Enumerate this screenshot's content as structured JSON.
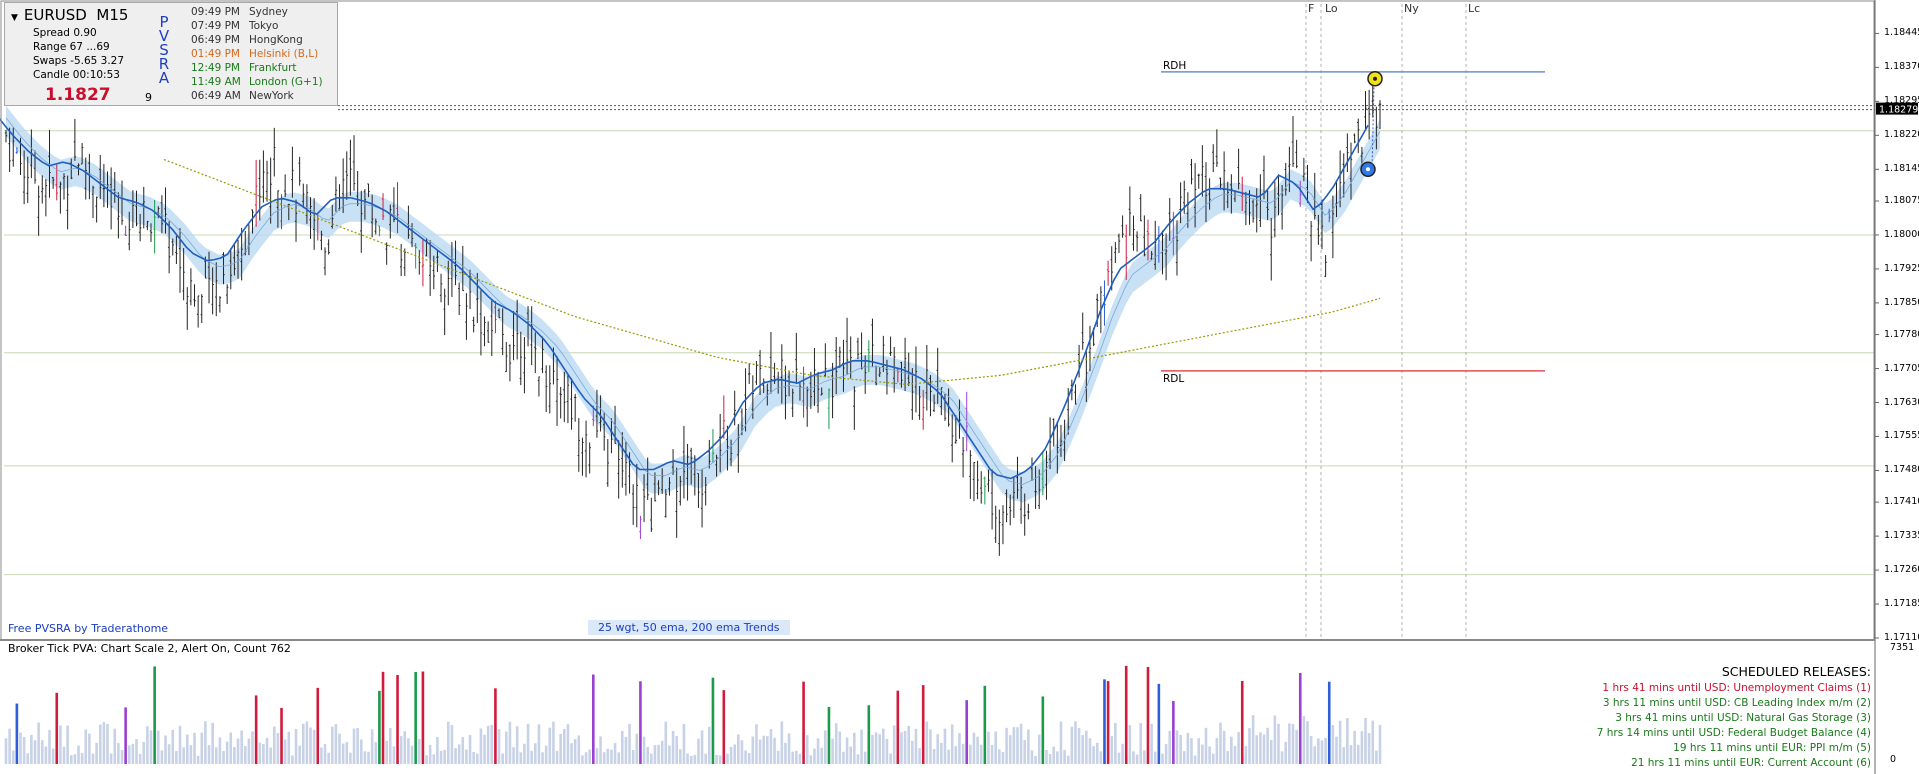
{
  "chart_data": {
    "type": "candlestick",
    "symbol": "EURUSD",
    "timeframe": "M15",
    "ylim": [
      1.1711,
      1.1851
    ],
    "y_ticks": [
      "1.18445",
      "1.18370",
      "1.18295",
      "1.18220",
      "1.18145",
      "1.18075",
      "1.18000",
      "1.17925",
      "1.17850",
      "1.17780",
      "1.17705",
      "1.17630",
      "1.17555",
      "1.17480",
      "1.17410",
      "1.17335",
      "1.17260",
      "1.17185",
      "1.17110"
    ],
    "current_price": "1.18279",
    "bar_count": 762,
    "price_path": [
      1.1822,
      1.1815,
      1.1812,
      1.181,
      1.1818,
      1.1812,
      1.1805,
      1.1802,
      1.1806,
      1.18,
      1.1792,
      1.1785,
      1.179,
      1.1795,
      1.1808,
      1.1815,
      1.181,
      1.1804,
      1.1799,
      1.1812,
      1.1808,
      1.1803,
      1.18,
      1.1795,
      1.1793,
      1.179,
      1.1786,
      1.178,
      1.1776,
      1.1778,
      1.1772,
      1.1768,
      1.176,
      1.1755,
      1.1752,
      1.1745,
      1.1738,
      1.1744,
      1.175,
      1.1745,
      1.1753,
      1.1758,
      1.1768,
      1.177,
      1.1767,
      1.1764,
      1.1768,
      1.177,
      1.1771,
      1.1772,
      1.1769,
      1.1767,
      1.1765,
      1.176,
      1.1752,
      1.1744,
      1.1738,
      1.1742,
      1.1748,
      1.1756,
      1.1768,
      1.178,
      1.1792,
      1.1802,
      1.1797,
      1.18,
      1.1806,
      1.181,
      1.1812,
      1.1808,
      1.1806,
      1.1804,
      1.1818,
      1.1808,
      1.1797,
      1.1816,
      1.1823,
      1.1828
    ],
    "ema_25": [
      1.1825,
      1.182,
      1.1816,
      1.1813,
      1.1814,
      1.1812,
      1.1809,
      1.1806,
      1.1805,
      1.1803,
      1.1799,
      1.1794,
      1.1792,
      1.1793,
      1.1799,
      1.1804,
      1.1806,
      1.1805,
      1.1802,
      1.1806,
      1.1806,
      1.1805,
      1.1803,
      1.18,
      1.1797,
      1.1794,
      1.1791,
      1.1787,
      1.1783,
      1.1781,
      1.1778,
      1.1774,
      1.1768,
      1.1762,
      1.1758,
      1.1752,
      1.1746,
      1.1746,
      1.1748,
      1.1747,
      1.175,
      1.1754,
      1.1761,
      1.1765,
      1.1766,
      1.1765,
      1.1767,
      1.1768,
      1.177,
      1.177,
      1.1769,
      1.1768,
      1.1766,
      1.1763,
      1.1757,
      1.1751,
      1.1745,
      1.1744,
      1.1746,
      1.1751,
      1.176,
      1.177,
      1.1781,
      1.179,
      1.1793,
      1.1796,
      1.1801,
      1.1805,
      1.1808,
      1.1808,
      1.1807,
      1.1806,
      1.1811,
      1.1809,
      1.1803,
      1.1808,
      1.1815,
      1.1822
    ],
    "ema_200": [
      1.183,
      1.1826,
      1.1822,
      1.1818,
      1.1814,
      1.181,
      1.1806,
      1.1802,
      1.1798,
      1.1794,
      1.179,
      1.1786,
      1.1782,
      1.1779,
      1.1776,
      1.1773,
      1.1771,
      1.1769,
      1.1768,
      1.1767,
      1.1768,
      1.1769,
      1.1771,
      1.1773,
      1.1775,
      1.1777,
      1.1779,
      1.1781,
      1.1783,
      1.1786
    ],
    "rdh": 1.1836,
    "rdl": 1.177,
    "horizontal_levels": [
      1.1823,
      1.18,
      1.1774,
      1.1749,
      1.1725
    ],
    "session_markers": [
      "F",
      "Lo",
      "Ny",
      "Lc"
    ],
    "volume_max": "7351",
    "volume_min": "0"
  },
  "info_panel": {
    "symbol": "EURUSD",
    "timeframe": "M15",
    "spread": "Spread 0.90",
    "range": "Range  67  ...69",
    "swaps": "Swaps -5.65  3.27",
    "candle": "Candle  00:10:53",
    "price_big": "1.1827",
    "price_small": "9",
    "pvsra": [
      "P",
      "V",
      "S",
      "R",
      "A"
    ],
    "sessions": [
      {
        "time": "09:49 PM",
        "name": "Sydney",
        "color": "#333333"
      },
      {
        "time": "07:49 PM",
        "name": "Tokyo",
        "color": "#333333"
      },
      {
        "time": "06:49 PM",
        "name": "HongKong",
        "color": "#333333"
      },
      {
        "time": "01:49 PM",
        "name": "Helsinki (B,L)",
        "color": "#d2691e"
      },
      {
        "time": "12:49 PM",
        "name": "Frankfurt",
        "color": "#1a7a1a"
      },
      {
        "time": "11:49 AM",
        "name": "London  (G+1)",
        "color": "#1a7a1a"
      },
      {
        "time": "06:49 AM",
        "name": "NewYork",
        "color": "#333333"
      }
    ]
  },
  "labels": {
    "rdh": "RDH",
    "rdl": "RDL",
    "footer_left": "Free  PVSRA  by  Traderathome",
    "footer_mid": "25 wgt,  50 ema,  200 ema  Trends",
    "subwindow": "Broker Tick PVA:    Chart Scale  2,  Alert On,  Count   762"
  },
  "releases": {
    "title": "SCHEDULED RELEASES:",
    "items": [
      {
        "text": "1 hrs 41 mins until USD: Unemployment Claims  (1)",
        "color": "#c8102e"
      },
      {
        "text": "3 hrs 11 mins until USD: CB Leading Index m/m  (2)",
        "color": "#1a7a1a"
      },
      {
        "text": "3 hrs 41 mins until USD: Natural Gas Storage  (3)",
        "color": "#1a7a1a"
      },
      {
        "text": "7 hrs 14 mins until USD: Federal Budget Balance  (4)",
        "color": "#1a7a1a"
      },
      {
        "text": "19 hrs 11 mins until EUR: PPI m/m  (5)",
        "color": "#1a7a1a"
      },
      {
        "text": "21 hrs 11 mins until EUR: Current Account  (6)",
        "color": "#1a7a1a"
      }
    ]
  },
  "colors": {
    "bull": "#222222",
    "climax_red": "#d01c3c",
    "climax_green": "#1a9a4a",
    "climax_purple": "#9b3fd1",
    "climax_blue": "#2f5fd8",
    "ema": "#1f5fc0",
    "band": "#bcd9f3",
    "ema200": "#9a9a00",
    "rdh": "#6b8fd6",
    "rdl": "#e05050",
    "volume": "#c8d2e6"
  }
}
